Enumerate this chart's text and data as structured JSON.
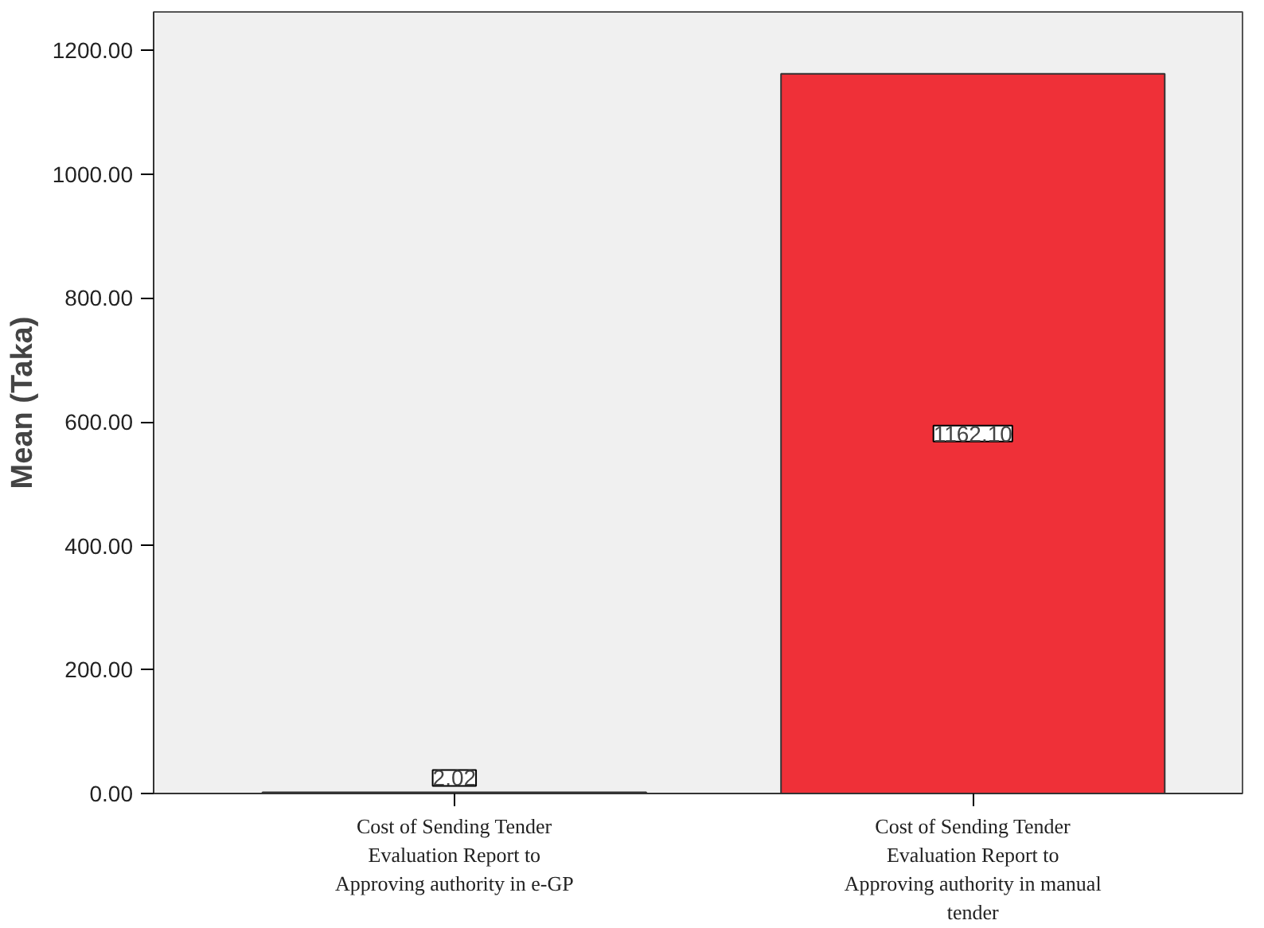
{
  "chart_data": {
    "type": "bar",
    "ylabel": "Mean (Taka)",
    "categories": [
      "Cost of Sending Tender Evaluation Report to Approving authority in e-GP",
      "Cost of Sending Tender Evaluation Report to Approving authority in manual tender"
    ],
    "values": [
      2.02,
      1162.1
    ],
    "colors": [
      "#ef3038",
      "#ef3038"
    ],
    "value_labels": [
      "2.02",
      "1162.10"
    ],
    "ylim": [
      0,
      1262
    ],
    "yticks": [
      {
        "value": 0,
        "label": "0.00"
      },
      {
        "value": 200,
        "label": "200.00"
      },
      {
        "value": 400,
        "label": "400.00"
      },
      {
        "value": 600,
        "label": "600.00"
      },
      {
        "value": 800,
        "label": "800.00"
      },
      {
        "value": 1000,
        "label": "1000.00"
      },
      {
        "value": 1200,
        "label": "1200.00"
      }
    ],
    "grid": false
  }
}
